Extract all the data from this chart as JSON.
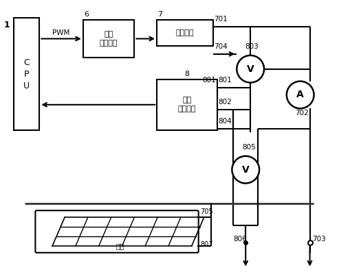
{
  "bg_color": "#ffffff",
  "line_color": "#000000",
  "cpu_label": "C\nP\nU",
  "cpu_num": "1",
  "box6_label": "信号\n发生电路",
  "box6_num": "6",
  "box7_label": "升压电路",
  "box7_num": "7",
  "box8_label": "8",
  "boxS_label": "信号\n采集电路",
  "pwm_label": "PWM",
  "label_701": "701",
  "label_704": "704",
  "label_801": "801",
  "label_802": "802",
  "label_804": "804",
  "label_803": "803",
  "label_702": "702",
  "label_705": "705",
  "label_807": "807",
  "label_806": "806",
  "label_703": "703",
  "label_805": "805",
  "label_dimeng": "地网",
  "V803_label": "V",
  "V805_label": "V",
  "A_label": "A"
}
